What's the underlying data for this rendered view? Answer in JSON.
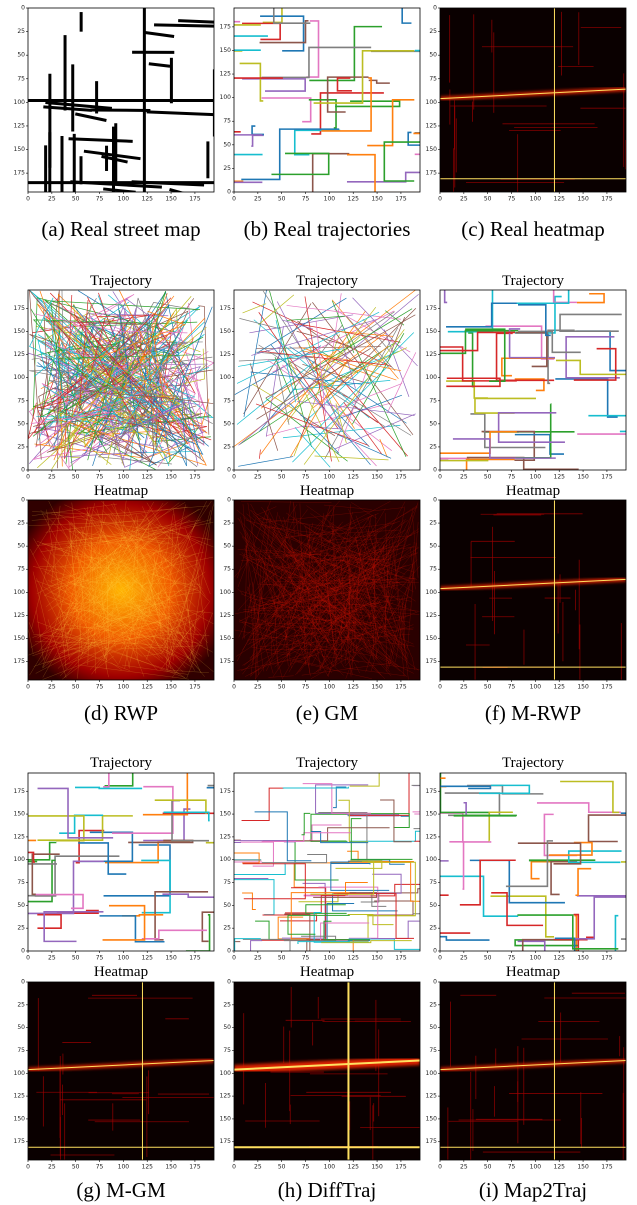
{
  "ticks": [
    0,
    25,
    50,
    75,
    100,
    125,
    150,
    175
  ],
  "titles": {
    "trajectory": "Trajectory",
    "heatmap": "Heatmap"
  },
  "captions": [
    "(a) Real street map",
    "(b) Real trajectories",
    "(c) Real heatmap",
    "(d) RWP",
    "(e) GM",
    "(f) M-RWP",
    "(g) M-GM",
    "(h) DiffTraj",
    "(i) Map2Traj"
  ]
}
